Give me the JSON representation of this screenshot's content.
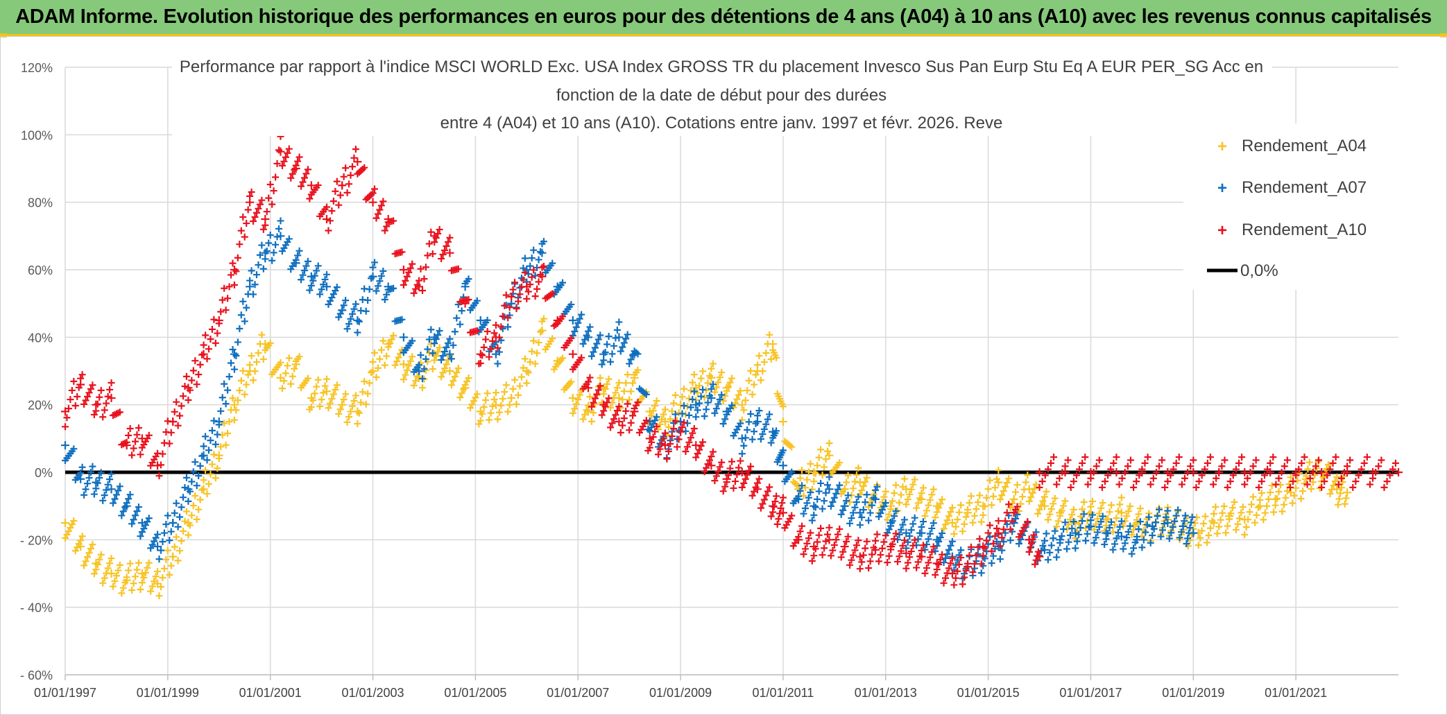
{
  "banner": {
    "title": "ADAM Informe. Evolution historique des performances en euros pour des détentions de 4 ans (A04) à 10 ans (A10) avec les revenus connus capitalisés"
  },
  "colors": {
    "banner_bg": "#86c97a",
    "banner_accent": "#f0c419",
    "a04": "#f7c325",
    "a07": "#0f6fbf",
    "a10": "#e8121d",
    "zero_line": "#000000",
    "grid": "#d9d9d9"
  },
  "chart_data": {
    "type": "scatter",
    "title_lines": [
      "Performance  par rapport à l'indice MSCI WORLD Exc. USA Index GROSS TR  du placement Invesco Sus Pan Eurp Stu Eq A EUR PER_SG Acc en",
      "fonction de la date de début pour des durées",
      "entre 4 (A04) et 10 ans (A10). Cotations entre janv. 1997 et févr. 2026. Reve"
    ],
    "x_ticks": [
      "01/01/1997",
      "01/01/1999",
      "01/01/2001",
      "01/01/2003",
      "01/01/2005",
      "01/01/2007",
      "01/01/2009",
      "01/01/2011",
      "01/01/2013",
      "01/01/2015",
      "01/01/2017",
      "01/01/2019",
      "01/01/2021"
    ],
    "x_range": [
      1997.0,
      2023.0
    ],
    "y_ticks": [
      -60,
      -40,
      -20,
      0,
      20,
      40,
      60,
      80,
      100,
      120
    ],
    "y_tick_labels": [
      "- 60%",
      "- 40%",
      "- 20%",
      "0%",
      "20%",
      "40%",
      "60%",
      "80%",
      "100%",
      "120%"
    ],
    "ylim": [
      -60,
      120
    ],
    "grid": true,
    "legend_position": "top-right",
    "series": [
      {
        "name": "Rendement_A04",
        "marker": "+",
        "x": [
          1997.0,
          1997.3,
          1997.6,
          1997.9,
          1998.2,
          1998.5,
          1998.8,
          1999.1,
          1999.4,
          1999.7,
          2000.0,
          2000.3,
          2000.6,
          2000.9,
          2001.2,
          2001.5,
          2001.8,
          2002.1,
          2002.4,
          2002.7,
          2003.0,
          2003.3,
          2003.6,
          2003.9,
          2004.2,
          2004.5,
          2004.8,
          2005.1,
          2005.4,
          2005.7,
          2006.0,
          2006.3,
          2006.6,
          2006.9,
          2007.2,
          2007.5,
          2007.8,
          2008.1,
          2008.4,
          2008.7,
          2009.0,
          2009.3,
          2009.6,
          2009.9,
          2010.2,
          2010.5,
          2010.8,
          2011.0,
          2011.3,
          2011.6,
          2011.9,
          2012.2,
          2012.5,
          2012.8,
          2013.1,
          2013.4,
          2013.7,
          2014.0,
          2014.3,
          2014.6,
          2014.9,
          2015.2,
          2015.5,
          2015.8,
          2016.1,
          2016.4,
          2016.7,
          2017.0,
          2017.3,
          2017.6,
          2017.9,
          2018.2,
          2018.5,
          2018.8,
          2019.1,
          2019.4,
          2019.7,
          2020.0,
          2020.3,
          2020.6,
          2020.9,
          2021.2,
          2021.5,
          2021.8,
          2022.0
        ],
        "y": [
          -15,
          -22,
          -27,
          -30,
          -32,
          -30,
          -33,
          -25,
          -15,
          -5,
          5,
          20,
          30,
          38,
          28,
          32,
          22,
          24,
          20,
          18,
          30,
          38,
          32,
          28,
          35,
          30,
          25,
          18,
          20,
          22,
          30,
          42,
          33,
          22,
          18,
          25,
          22,
          28,
          18,
          15,
          20,
          25,
          28,
          25,
          20,
          30,
          38,
          15,
          -5,
          0,
          5,
          -5,
          -3,
          -8,
          -10,
          -5,
          -8,
          -10,
          -15,
          -12,
          -10,
          -3,
          -8,
          -5,
          -10,
          -12,
          -15,
          -12,
          -14,
          -12,
          -15,
          -16,
          -14,
          -17,
          -18,
          -15,
          -13,
          -14,
          -10,
          -8,
          -6,
          -2,
          0,
          -5,
          -6
        ]
      },
      {
        "name": "Rendement_A07",
        "marker": "+",
        "x": [
          1997.0,
          1997.3,
          1997.6,
          1997.9,
          1998.2,
          1998.5,
          1998.8,
          1999.1,
          1999.4,
          1999.7,
          2000.0,
          2000.3,
          2000.6,
          2000.9,
          2001.2,
          2001.5,
          2001.8,
          2002.1,
          2002.4,
          2002.7,
          2003.0,
          2003.3,
          2003.6,
          2003.9,
          2004.2,
          2004.5,
          2004.8,
          2005.1,
          2005.4,
          2005.7,
          2006.0,
          2006.3,
          2006.6,
          2006.9,
          2007.2,
          2007.5,
          2007.8,
          2008.1,
          2008.4,
          2008.7,
          2009.0,
          2009.3,
          2009.6,
          2009.9,
          2010.2,
          2010.5,
          2010.8,
          2011.0,
          2011.3,
          2011.6,
          2011.9,
          2012.2,
          2012.5,
          2012.8,
          2013.1,
          2013.4,
          2013.7,
          2014.0,
          2014.3,
          2014.6,
          2014.9,
          2015.2,
          2015.5,
          2015.8,
          2016.1,
          2016.4,
          2016.7,
          2017.0,
          2017.3,
          2017.6,
          2017.9,
          2018.2,
          2018.5,
          2018.8,
          2019.0
        ],
        "y": [
          8,
          -2,
          -3,
          -5,
          -10,
          -15,
          -22,
          -15,
          -5,
          5,
          15,
          35,
          55,
          65,
          70,
          62,
          58,
          55,
          48,
          45,
          58,
          55,
          40,
          30,
          40,
          35,
          55,
          45,
          35,
          50,
          60,
          65,
          55,
          45,
          40,
          35,
          40,
          35,
          15,
          8,
          15,
          20,
          22,
          18,
          10,
          15,
          12,
          2,
          -8,
          -10,
          -5,
          -10,
          -12,
          -8,
          -15,
          -18,
          -18,
          -20,
          -25,
          -28,
          -25,
          -22,
          -15,
          -20,
          -23,
          -20,
          -18,
          -16,
          -18,
          -19,
          -20,
          -16,
          -15,
          -16,
          -18
        ]
      },
      {
        "name": "Rendement_A10",
        "marker": "+",
        "x": [
          1997.0,
          1997.3,
          1997.6,
          1997.9,
          1998.2,
          1998.5,
          1998.8,
          1999.1,
          1999.4,
          1999.7,
          2000.0,
          2000.3,
          2000.6,
          2000.9,
          2001.2,
          2001.5,
          2001.8,
          2002.1,
          2002.4,
          2002.7,
          2003.0,
          2003.3,
          2003.6,
          2003.9,
          2004.2,
          2004.5,
          2004.8,
          2005.1,
          2005.4,
          2005.7,
          2006.0,
          2006.3,
          2006.6,
          2006.9,
          2007.2,
          2007.5,
          2007.8,
          2008.1,
          2008.4,
          2008.7,
          2009.0,
          2009.3,
          2009.6,
          2009.9,
          2010.2,
          2010.5,
          2010.8,
          2011.0,
          2011.3,
          2011.6,
          2011.9,
          2012.2,
          2012.5,
          2012.8,
          2013.1,
          2013.4,
          2013.7,
          2014.0,
          2014.3,
          2014.6,
          2014.9,
          2015.2,
          2015.5,
          2015.8,
          2016.0
        ],
        "y": [
          18,
          26,
          20,
          22,
          8,
          10,
          2,
          15,
          25,
          35,
          45,
          60,
          80,
          75,
          95,
          90,
          85,
          75,
          85,
          92,
          80,
          75,
          60,
          55,
          70,
          65,
          50,
          35,
          40,
          52,
          55,
          58,
          45,
          35,
          25,
          20,
          15,
          18,
          10,
          8,
          12,
          8,
          2,
          -2,
          0,
          -5,
          -10,
          -12,
          -20,
          -22,
          -20,
          -22,
          -25,
          -23,
          -22,
          -24,
          -25,
          -27,
          -30,
          -28,
          -22,
          -18,
          -12,
          -20,
          -25
        ]
      },
      {
        "name": "Rendement_A10",
        "marker": "+",
        "x": [
          2016.0,
          2016.5,
          2017.0,
          2017.5,
          2018.0,
          2018.5,
          2019.0,
          2019.5,
          2020.0,
          2020.5,
          2021.0,
          2021.5,
          2022.0,
          2022.5,
          2023.0
        ],
        "y": [
          0,
          0,
          0,
          0,
          0,
          0,
          0,
          0,
          0,
          0,
          0,
          0,
          0,
          0,
          0
        ]
      }
    ],
    "zero_line": {
      "label": "0,0%",
      "value": 0
    },
    "legend": [
      "Rendement_A04",
      "Rendement_A07",
      "Rendement_A10",
      "0,0%"
    ]
  }
}
